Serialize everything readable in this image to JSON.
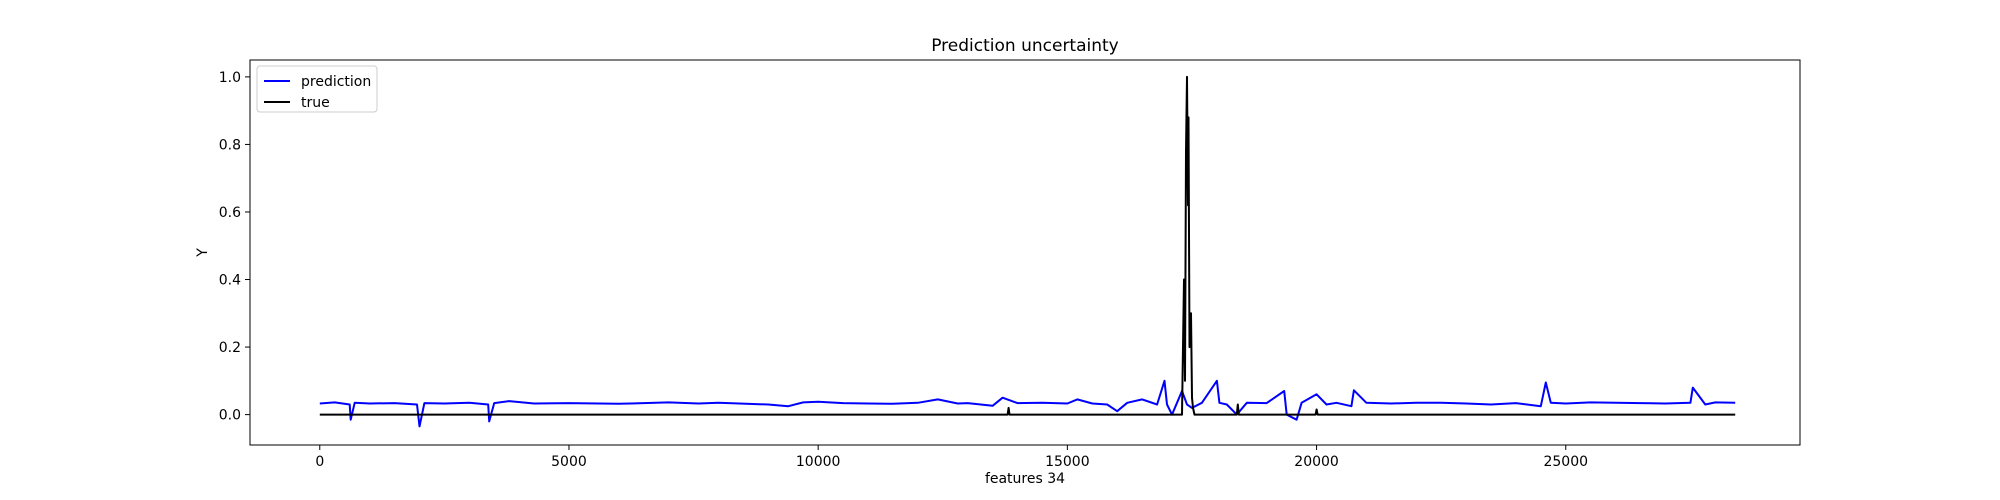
{
  "chart_data": {
    "type": "line",
    "title": "Prediction uncertainty",
    "xlabel": "features 34",
    "ylabel": "Y",
    "xlim": [
      -1400,
      29700
    ],
    "ylim": [
      -0.09,
      1.05
    ],
    "x_ticks": [
      0,
      5000,
      10000,
      15000,
      20000,
      25000
    ],
    "y_ticks": [
      0.0,
      0.2,
      0.4,
      0.6,
      0.8,
      1.0
    ],
    "grid": false,
    "legend_position": "top-left",
    "series": [
      {
        "name": "prediction",
        "color": "#0000ff",
        "x": [
          0,
          300,
          600,
          620,
          700,
          1000,
          1500,
          1950,
          2000,
          2100,
          2500,
          3000,
          3380,
          3400,
          3500,
          3800,
          4300,
          5000,
          6000,
          7000,
          7600,
          8000,
          9000,
          9400,
          9700,
          10000,
          10500,
          11000,
          11500,
          12000,
          12400,
          12800,
          13000,
          13500,
          13700,
          14000,
          14500,
          15000,
          15200,
          15500,
          15800,
          16000,
          16200,
          16500,
          16800,
          16950,
          17000,
          17100,
          17200,
          17300,
          17400,
          17500,
          17700,
          18000,
          18050,
          18200,
          18400,
          18600,
          19000,
          19350,
          19400,
          19600,
          19700,
          20000,
          20200,
          20400,
          20700,
          20750,
          21000,
          21500,
          22000,
          22500,
          23000,
          23500,
          24000,
          24500,
          24600,
          24700,
          25000,
          25500,
          26000,
          26500,
          27000,
          27500,
          27550,
          27800,
          28000,
          28400
        ],
        "y": [
          0.033,
          0.036,
          0.03,
          -0.015,
          0.035,
          0.033,
          0.034,
          0.03,
          -0.035,
          0.034,
          0.033,
          0.035,
          0.03,
          -0.02,
          0.034,
          0.04,
          0.033,
          0.034,
          0.032,
          0.036,
          0.033,
          0.035,
          0.03,
          0.025,
          0.036,
          0.038,
          0.034,
          0.033,
          0.032,
          0.035,
          0.045,
          0.033,
          0.034,
          0.026,
          0.05,
          0.034,
          0.035,
          0.033,
          0.045,
          0.033,
          0.03,
          0.01,
          0.035,
          0.045,
          0.03,
          0.1,
          0.03,
          0.0,
          0.035,
          0.07,
          0.03,
          0.02,
          0.035,
          0.1,
          0.035,
          0.03,
          0.0,
          0.035,
          0.034,
          0.07,
          0.0,
          -0.015,
          0.035,
          0.06,
          0.03,
          0.035,
          0.025,
          0.072,
          0.035,
          0.033,
          0.035,
          0.035,
          0.033,
          0.03,
          0.034,
          0.025,
          0.095,
          0.035,
          0.033,
          0.036,
          0.035,
          0.034,
          0.033,
          0.035,
          0.08,
          0.03,
          0.036,
          0.035
        ]
      },
      {
        "name": "true",
        "color": "#000000",
        "x": [
          0,
          13800,
          13820,
          13840,
          17000,
          17300,
          17340,
          17360,
          17380,
          17400,
          17420,
          17430,
          17450,
          17480,
          17500,
          17520,
          17550,
          18400,
          18420,
          18440,
          19980,
          20000,
          20020,
          28400
        ],
        "y": [
          0,
          0,
          0.02,
          0,
          0,
          0,
          0.4,
          0.1,
          0.78,
          1.0,
          0.62,
          0.88,
          0.2,
          0.3,
          0.05,
          0.02,
          0,
          0,
          0.03,
          0,
          0,
          0.015,
          0,
          0
        ]
      }
    ]
  }
}
